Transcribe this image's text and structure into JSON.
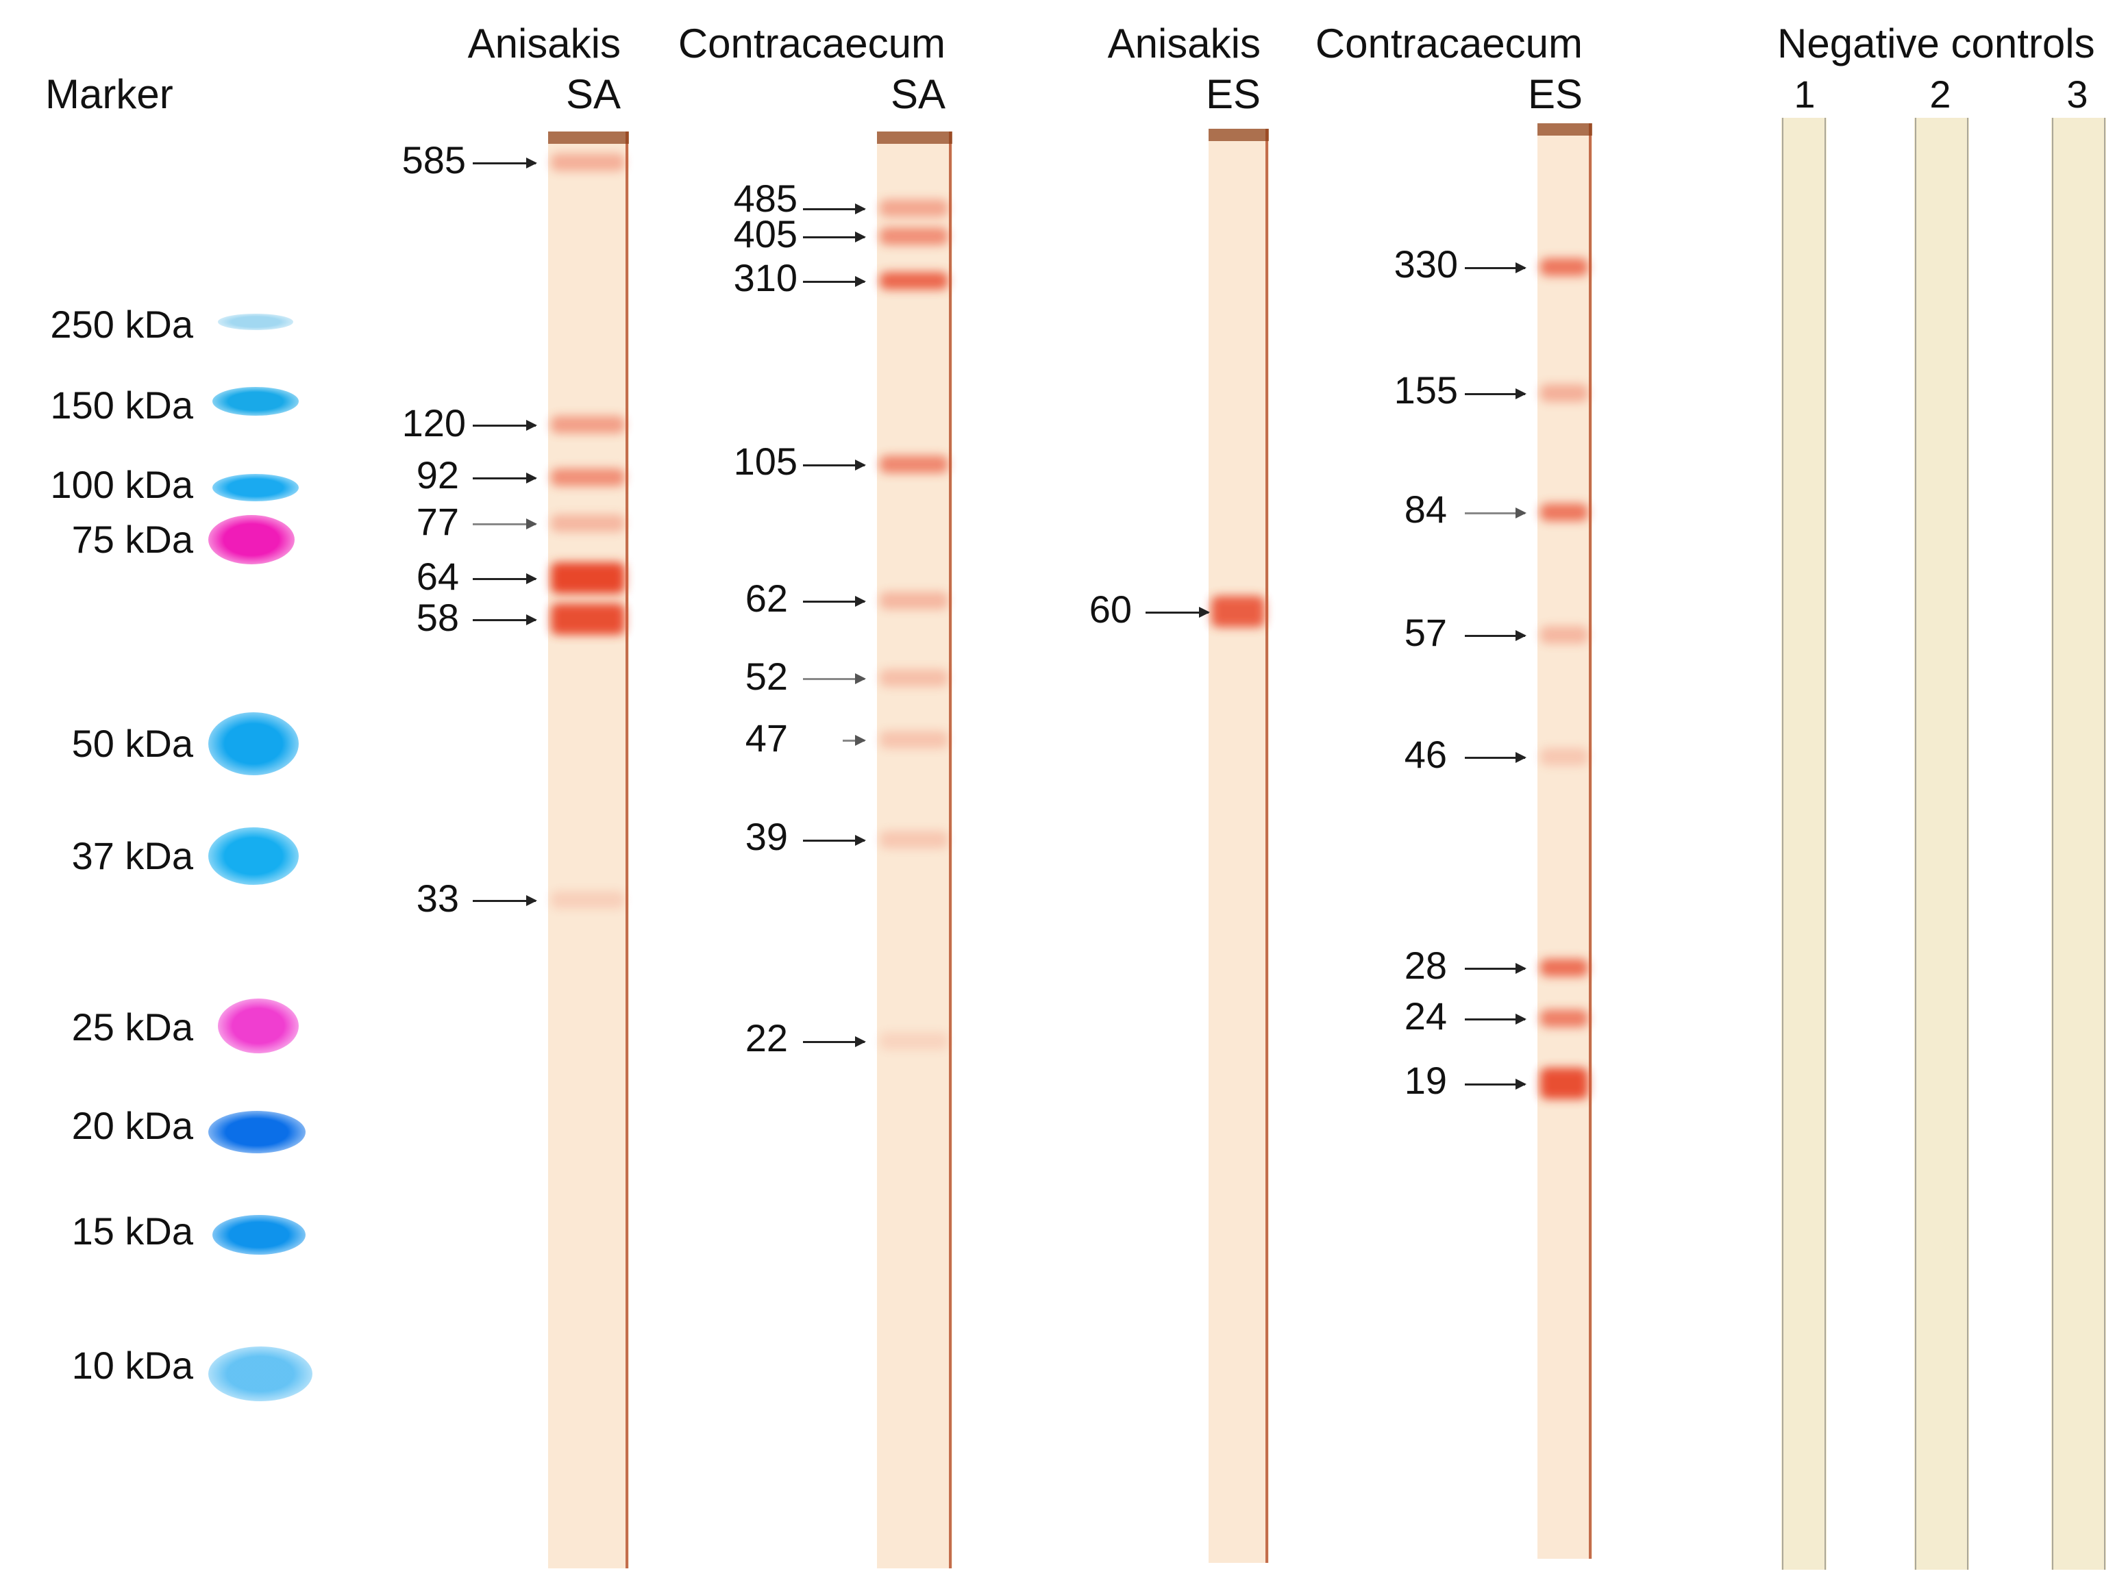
{
  "marker": {
    "title": "Marker",
    "bands": [
      {
        "label": "250 kDa",
        "color": "#55b8e6"
      },
      {
        "label": "150 kDa",
        "color": "#19a9e8"
      },
      {
        "label": "100 kDa",
        "color": "#1aaaf0"
      },
      {
        "label": "75 kDa",
        "color": "#f01cb8"
      },
      {
        "label": "50 kDa",
        "color": "#12a6ee"
      },
      {
        "label": "37 kDa",
        "color": "#16aef0"
      },
      {
        "label": "25 kDa",
        "color": "#f03ed0"
      },
      {
        "label": "20 kDa",
        "color": "#0b6fe8"
      },
      {
        "label": "15 kDa",
        "color": "#0f93ec"
      },
      {
        "label": "10 kDa",
        "color": "#3fb4f2"
      }
    ]
  },
  "blots": [
    {
      "line1": "Anisakis",
      "line2": "SA",
      "bands": [
        {
          "label": "585",
          "intensity": 0.35
        },
        {
          "label": "120",
          "intensity": 0.45
        },
        {
          "label": "92",
          "intensity": 0.55
        },
        {
          "label": "77",
          "intensity": 0.3
        },
        {
          "label": "64",
          "intensity": 1.0
        },
        {
          "label": "58",
          "intensity": 0.95
        },
        {
          "label": "33",
          "intensity": 0.15
        }
      ]
    },
    {
      "line1": "Contracaecum",
      "line2": "SA",
      "bands": [
        {
          "label": "485",
          "intensity": 0.4
        },
        {
          "label": "405",
          "intensity": 0.55
        },
        {
          "label": "310",
          "intensity": 0.8
        },
        {
          "label": "105",
          "intensity": 0.6
        },
        {
          "label": "62",
          "intensity": 0.3
        },
        {
          "label": "52",
          "intensity": 0.25
        },
        {
          "label": "47",
          "intensity": 0.22
        },
        {
          "label": "39",
          "intensity": 0.2
        },
        {
          "label": "22",
          "intensity": 0.12
        }
      ]
    },
    {
      "line1": "Anisakis",
      "line2": "ES",
      "bands": [
        {
          "label": "60",
          "intensity": 0.85
        }
      ]
    },
    {
      "line1": "Contracaecum",
      "line2": "ES",
      "bands": [
        {
          "label": "330",
          "intensity": 0.7
        },
        {
          "label": "155",
          "intensity": 0.35
        },
        {
          "label": "84",
          "intensity": 0.7
        },
        {
          "label": "57",
          "intensity": 0.3
        },
        {
          "label": "46",
          "intensity": 0.2
        },
        {
          "label": "28",
          "intensity": 0.75
        },
        {
          "label": "24",
          "intensity": 0.65
        },
        {
          "label": "19",
          "intensity": 0.95
        }
      ]
    }
  ],
  "negative_controls": {
    "title": "Negative controls",
    "lanes": [
      "1",
      "2",
      "3"
    ]
  },
  "colors": {
    "strip_bg": "#fbe8d4",
    "band": "#e8472a",
    "control_bg": "#f4ecd0",
    "strip_edge": "#b1451f"
  }
}
